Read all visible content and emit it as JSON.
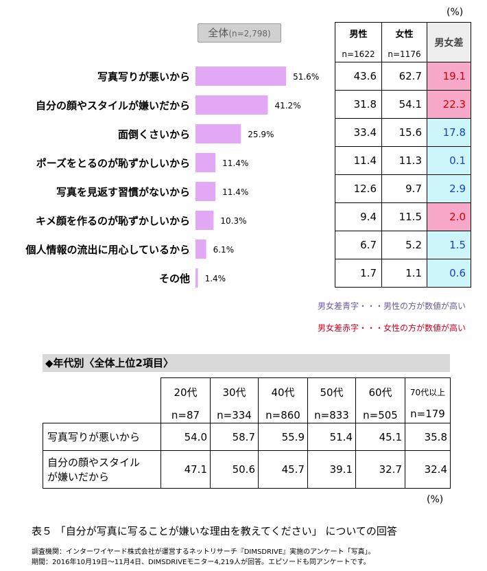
{
  "top": {
    "unit": "(%)",
    "overall_label": "全体",
    "overall_n": "(n=2,798)"
  },
  "chart_data": {
    "type": "bar",
    "orientation": "horizontal",
    "categories": [
      "写真写りが悪いから",
      "自分の顔やスタイルが嫌いだから",
      "面倒くさいから",
      "ポーズをとるのが恥ずかしいから",
      "写真を見返す習慣がないから",
      "キメ顔を作るのが恥ずかしいから",
      "個人情報の流出に用心しているから",
      "その他"
    ],
    "values": [
      51.6,
      41.2,
      25.9,
      11.4,
      11.4,
      10.3,
      6.1,
      1.4
    ],
    "value_labels": [
      "51.6%",
      "41.2%",
      "25.9%",
      "11.4%",
      "11.4%",
      "10.3%",
      "6.1%",
      "1.4%"
    ],
    "bar_color": "#e2a8f5",
    "xlim": [
      0,
      100
    ]
  },
  "gender_table": {
    "male_header": "男性",
    "male_n": "n=1622",
    "female_header": "女性",
    "female_n": "n=1176",
    "diff_header": "男女差",
    "rows": [
      {
        "male": "43.6",
        "female": "62.7",
        "diff": "19.1",
        "color": "red"
      },
      {
        "male": "31.8",
        "female": "54.1",
        "diff": "22.3",
        "color": "red"
      },
      {
        "male": "33.4",
        "female": "15.6",
        "diff": "17.8",
        "color": "blue"
      },
      {
        "male": "11.4",
        "female": "11.3",
        "diff": "0.1",
        "color": "blue"
      },
      {
        "male": "12.6",
        "female": "9.7",
        "diff": "2.9",
        "color": "blue"
      },
      {
        "male": "9.4",
        "female": "11.5",
        "diff": "2.0",
        "color": "red"
      },
      {
        "male": "6.7",
        "female": "5.2",
        "diff": "1.5",
        "color": "blue"
      },
      {
        "male": "1.7",
        "female": "1.1",
        "diff": "0.6",
        "color": "blue"
      }
    ],
    "legend_blue": "男女差青字・・・男性の方が数値が高い",
    "legend_red": "男女差赤字・・・女性の方が数値が高い",
    "colors": {
      "red_bg": "#f8a8c8",
      "red_text": "#d00000",
      "blue_bg": "#ccf6fa",
      "blue_text": "#1a3cc8"
    }
  },
  "age_table": {
    "heading": "◆年代別〈全体上位2項目〉",
    "columns": [
      {
        "label": "20代",
        "n": "n=87"
      },
      {
        "label": "30代",
        "n": "n=334"
      },
      {
        "label": "40代",
        "n": "n=860"
      },
      {
        "label": "50代",
        "n": "n=833"
      },
      {
        "label": "60代",
        "n": "n=505"
      },
      {
        "label": "70代以上",
        "n": "n=179"
      }
    ],
    "rows": [
      {
        "label": "写真写りが悪いから",
        "values": [
          "54.0",
          "58.7",
          "55.9",
          "51.4",
          "45.1",
          "35.8"
        ]
      },
      {
        "label_line1": "自分の顔やスタイル",
        "label_line2": "が嫌いだから",
        "values": [
          "47.1",
          "50.6",
          "45.7",
          "39.1",
          "32.7",
          "32.4"
        ]
      }
    ],
    "unit": "(%)"
  },
  "caption": "表５ 「自分が写真に写ることが嫌いな理由を教えてください」 についての回答",
  "source": {
    "line1": "調査機関：インターワイヤード株式会社が運営するネットリサーチ『DIMSDRIVE』実施のアンケート「写真」。",
    "line2": "期間：2016年10月19日～11月4日、DIMSDRIVEモニター4,219人が回答。エピソードも同アンケートです。"
  }
}
